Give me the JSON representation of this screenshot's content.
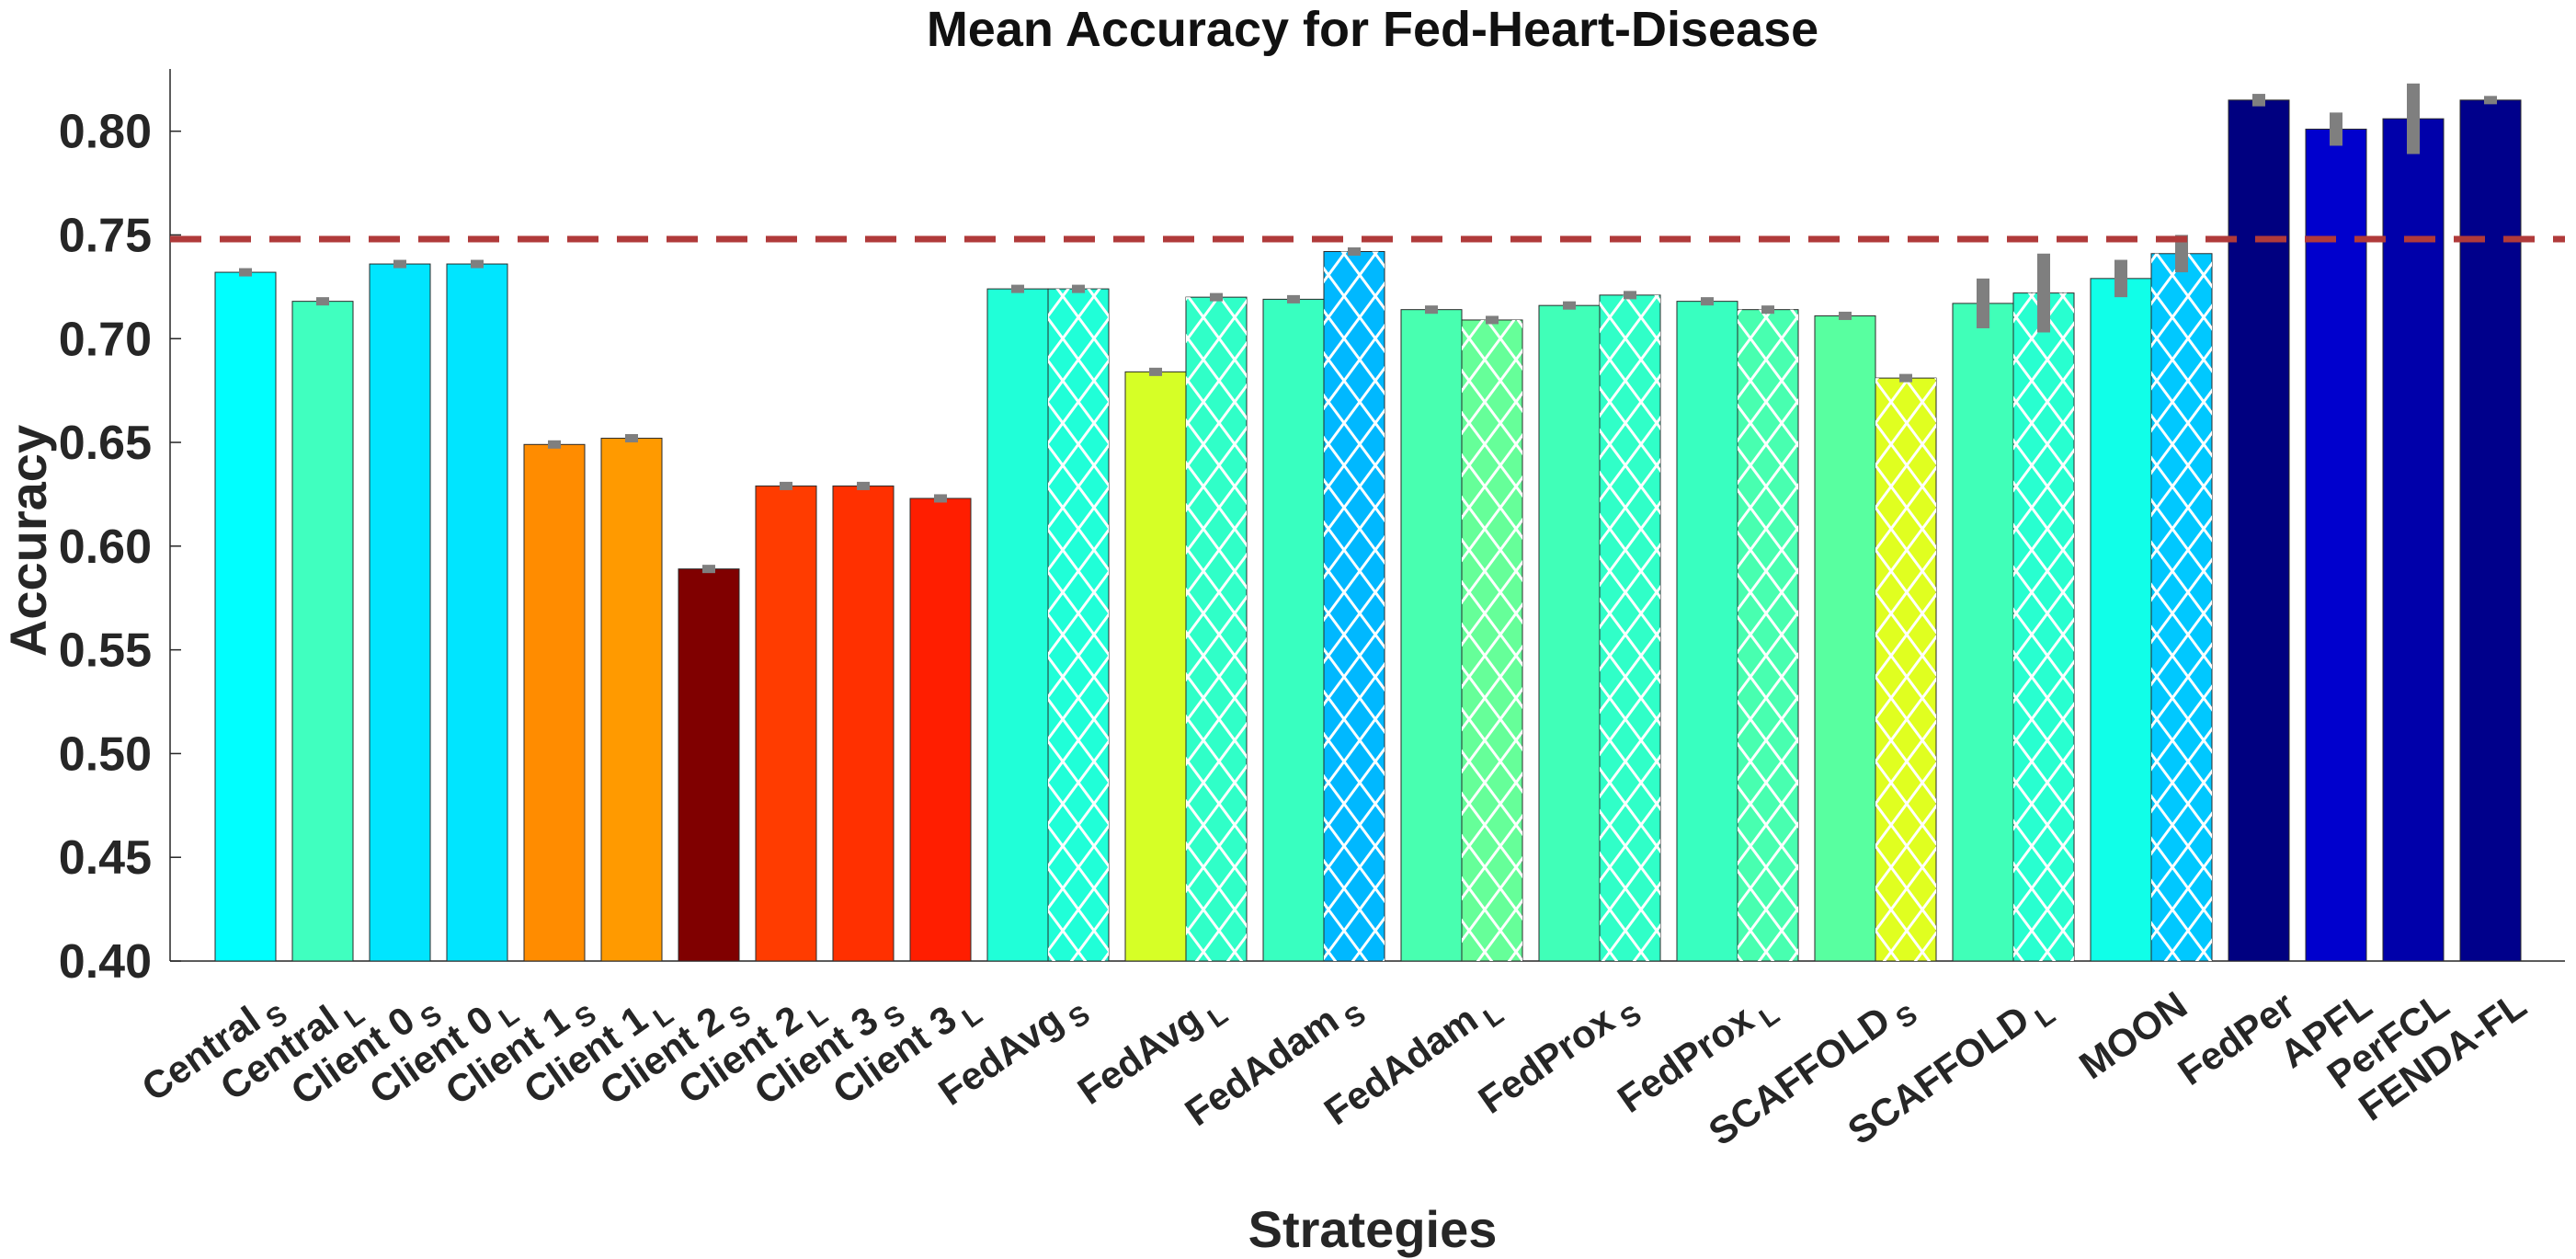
{
  "chart_data": {
    "type": "bar",
    "title": "Mean Accuracy for Fed-Heart-Disease",
    "xlabel": "Strategies",
    "ylabel": "Accuracy",
    "ylim": [
      0.4,
      0.83
    ],
    "yticks": [
      "0.40",
      "0.45",
      "0.50",
      "0.55",
      "0.60",
      "0.65",
      "0.70",
      "0.75",
      "0.80"
    ],
    "reference_line": {
      "value": 0.748,
      "color": "#b03a3a",
      "style": "dashed"
    },
    "hatch_color": "#ffffff",
    "error_bar_color": "#7f7f7f",
    "groups": [
      {
        "label": "Central",
        "sub": "S",
        "bars": [
          {
            "value": 0.732,
            "err": 0.002,
            "color": "#00ffff",
            "hatch": false
          }
        ]
      },
      {
        "label": "Central",
        "sub": "L",
        "bars": [
          {
            "value": 0.718,
            "err": 0.002,
            "color": "#40ffbf",
            "hatch": false
          }
        ]
      },
      {
        "label": "Client 0",
        "sub": "S",
        "bars": [
          {
            "value": 0.736,
            "err": 0.002,
            "color": "#00e5ff",
            "hatch": false
          }
        ]
      },
      {
        "label": "Client 0",
        "sub": "L",
        "bars": [
          {
            "value": 0.736,
            "err": 0.002,
            "color": "#00e5ff",
            "hatch": false
          }
        ]
      },
      {
        "label": "Client 1",
        "sub": "S",
        "bars": [
          {
            "value": 0.649,
            "err": 0.002,
            "color": "#ff8c00",
            "hatch": false
          }
        ]
      },
      {
        "label": "Client 1",
        "sub": "L",
        "bars": [
          {
            "value": 0.652,
            "err": 0.002,
            "color": "#ff9a00",
            "hatch": false
          }
        ]
      },
      {
        "label": "Client 2",
        "sub": "S",
        "bars": [
          {
            "value": 0.589,
            "err": 0.002,
            "color": "#800000",
            "hatch": false
          }
        ]
      },
      {
        "label": "Client 2",
        "sub": "L",
        "bars": [
          {
            "value": 0.629,
            "err": 0.002,
            "color": "#ff3c00",
            "hatch": false
          }
        ]
      },
      {
        "label": "Client 3",
        "sub": "S",
        "bars": [
          {
            "value": 0.629,
            "err": 0.002,
            "color": "#ff3000",
            "hatch": false
          }
        ]
      },
      {
        "label": "Client 3",
        "sub": "L",
        "bars": [
          {
            "value": 0.623,
            "err": 0.002,
            "color": "#ff1e00",
            "hatch": false
          }
        ]
      },
      {
        "label": "FedAvg",
        "sub": "S",
        "bars": [
          {
            "value": 0.724,
            "err": 0.002,
            "color": "#20ffd8",
            "hatch": false
          },
          {
            "value": 0.724,
            "err": 0.002,
            "color": "#20ffd8",
            "hatch": true
          }
        ]
      },
      {
        "label": "FedAvg",
        "sub": "L",
        "bars": [
          {
            "value": 0.684,
            "err": 0.002,
            "color": "#d6ff26",
            "hatch": false
          },
          {
            "value": 0.72,
            "err": 0.002,
            "color": "#30ffc8",
            "hatch": true
          }
        ]
      },
      {
        "label": "FedAdam",
        "sub": "S",
        "bars": [
          {
            "value": 0.719,
            "err": 0.002,
            "color": "#38ffc0",
            "hatch": false
          },
          {
            "value": 0.742,
            "err": 0.002,
            "color": "#00b8ff",
            "hatch": true
          }
        ]
      },
      {
        "label": "FedAdam",
        "sub": "L",
        "bars": [
          {
            "value": 0.714,
            "err": 0.002,
            "color": "#48ffb0",
            "hatch": false
          },
          {
            "value": 0.709,
            "err": 0.002,
            "color": "#66ff99",
            "hatch": true
          }
        ]
      },
      {
        "label": "FedProx",
        "sub": "S",
        "bars": [
          {
            "value": 0.716,
            "err": 0.002,
            "color": "#40ffb8",
            "hatch": false
          },
          {
            "value": 0.721,
            "err": 0.002,
            "color": "#30ffc8",
            "hatch": true
          }
        ]
      },
      {
        "label": "FedProx",
        "sub": "L",
        "bars": [
          {
            "value": 0.718,
            "err": 0.002,
            "color": "#38ffc0",
            "hatch": false
          },
          {
            "value": 0.714,
            "err": 0.002,
            "color": "#48ffb0",
            "hatch": true
          }
        ]
      },
      {
        "label": "SCAFFOLD",
        "sub": "S",
        "bars": [
          {
            "value": 0.711,
            "err": 0.002,
            "color": "#58ffa0",
            "hatch": false
          },
          {
            "value": 0.681,
            "err": 0.002,
            "color": "#e0ff20",
            "hatch": true
          }
        ]
      },
      {
        "label": "SCAFFOLD",
        "sub": "L",
        "bars": [
          {
            "value": 0.717,
            "err": 0.012,
            "color": "#40ffb8",
            "hatch": false
          },
          {
            "value": 0.722,
            "err": 0.019,
            "color": "#28ffd0",
            "hatch": true
          }
        ]
      },
      {
        "label": "MOON",
        "sub": "",
        "bars": [
          {
            "value": 0.729,
            "err": 0.009,
            "color": "#10ffe8",
            "hatch": false
          },
          {
            "value": 0.741,
            "err": 0.009,
            "color": "#00c8ff",
            "hatch": true
          }
        ]
      },
      {
        "label": "FedPer",
        "sub": "",
        "bars": [
          {
            "value": 0.815,
            "err": 0.003,
            "color": "#000080",
            "hatch": false
          }
        ]
      },
      {
        "label": "APFL",
        "sub": "",
        "bars": [
          {
            "value": 0.801,
            "err": 0.008,
            "color": "#0000cd",
            "hatch": false
          }
        ]
      },
      {
        "label": "PerFCL",
        "sub": "",
        "bars": [
          {
            "value": 0.806,
            "err": 0.017,
            "color": "#0000aa",
            "hatch": false
          }
        ]
      },
      {
        "label": "FENDA-FL",
        "sub": "",
        "bars": [
          {
            "value": 0.815,
            "err": 0.002,
            "color": "#00008b",
            "hatch": false
          }
        ]
      }
    ]
  }
}
